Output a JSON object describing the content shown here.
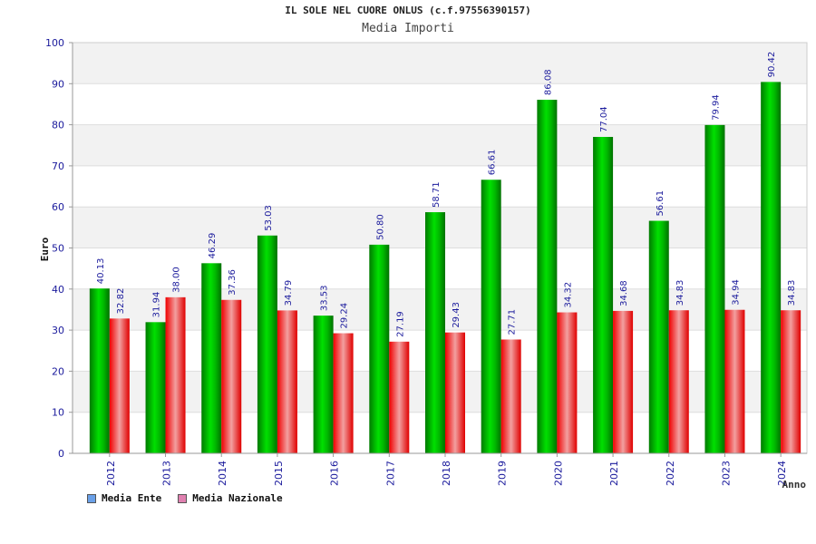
{
  "chart_data": {
    "type": "bar",
    "title": "IL SOLE NEL CUORE ONLUS (c.f.97556390157)",
    "subtitle": "Media Importi",
    "xlabel": "Anno",
    "ylabel": "Euro",
    "ylim": [
      0,
      100
    ],
    "yticks": [
      0,
      10,
      20,
      30,
      40,
      50,
      60,
      70,
      80,
      90,
      100
    ],
    "grid": true,
    "legend_position": "bottom-left",
    "categories": [
      "2012",
      "2013",
      "2014",
      "2015",
      "2016",
      "2017",
      "2018",
      "2019",
      "2020",
      "2021",
      "2022",
      "2023",
      "2024"
    ],
    "series": [
      {
        "name": "Media Ente",
        "color": "#00c000",
        "legend_color": "#6aa0e8",
        "values": [
          40.13,
          31.94,
          46.29,
          53.03,
          33.53,
          50.8,
          58.71,
          66.61,
          86.08,
          77.04,
          56.61,
          79.94,
          90.42
        ],
        "labels": [
          "40.13",
          "31.94",
          "46.29",
          "53.03",
          "33.53",
          "50.80",
          "58.71",
          "66.61",
          "86.08",
          "77.04",
          "56.61",
          "79.94",
          "90.42"
        ]
      },
      {
        "name": "Media Nazionale",
        "color": "#f01010",
        "legend_color": "#e080b0",
        "values": [
          32.82,
          38.0,
          37.36,
          34.79,
          29.24,
          27.19,
          29.43,
          27.71,
          34.32,
          34.68,
          34.83,
          34.94,
          34.83
        ],
        "labels": [
          "32.82",
          "38.00",
          "37.36",
          "34.79",
          "29.24",
          "27.19",
          "29.43",
          "27.71",
          "34.32",
          "34.68",
          "34.83",
          "34.94",
          "34.83"
        ]
      }
    ]
  }
}
